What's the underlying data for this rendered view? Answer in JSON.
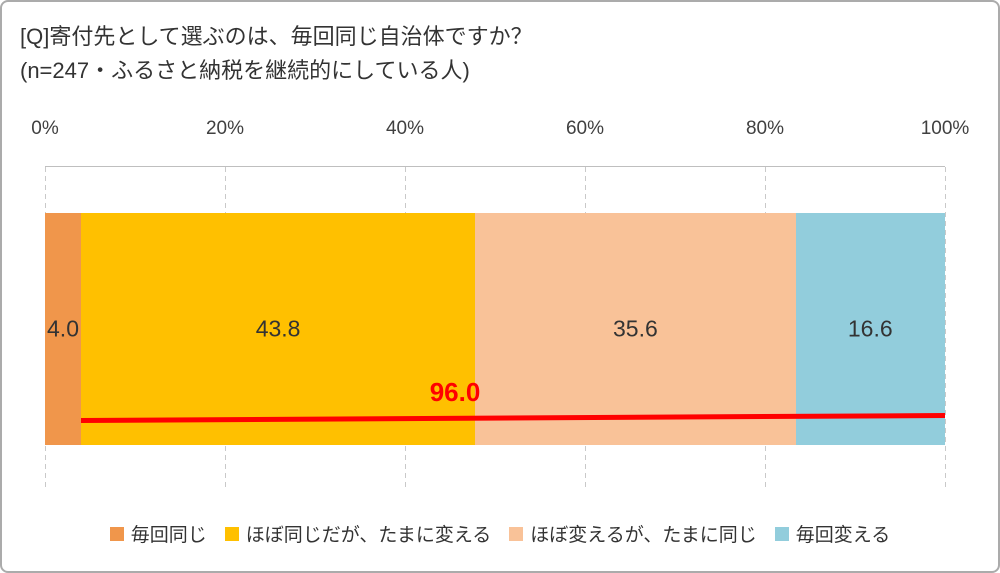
{
  "title": {
    "line1": "[Q]寄付先として選ぶのは、毎回同じ自治体ですか？",
    "line2": "(n=247・ふるさと納税を継続的にしている人)"
  },
  "chart_data": {
    "type": "bar",
    "orientation": "horizontal-stacked",
    "title": "[Q]寄付先として選ぶのは、毎回同じ自治体ですか？",
    "subtitle": "(n=247・ふるさと納税を継続的にしている人)",
    "n": 247,
    "axis": {
      "min": 0,
      "max": 100,
      "ticks": [
        "0%",
        "20%",
        "40%",
        "60%",
        "80%",
        "100%"
      ],
      "gridlines": "dashed-vertical"
    },
    "series": [
      {
        "name": "毎回同じ",
        "value": 4.0,
        "label": "4.0",
        "color": "#F0964B"
      },
      {
        "name": "ほぼ同じだが、たまに変える",
        "value": 43.8,
        "label": "43.8",
        "color": "#FFC000"
      },
      {
        "name": "ほぼ変えるが、たまに同じ",
        "value": 35.6,
        "label": "35.6",
        "color": "#F9C298"
      },
      {
        "name": "毎回変える",
        "value": 16.6,
        "label": "16.6",
        "color": "#92CDDC"
      }
    ],
    "annotation": {
      "label": "96.0",
      "value": 96.0,
      "line_from": 4.0,
      "line_to": 100.0,
      "color": "#FF0000"
    },
    "legend_position": "bottom"
  },
  "colors": {
    "panel_border": "#ababab",
    "axis_line": "#bfbfbf",
    "gridline": "#c9c9c9",
    "text": "#333333",
    "annotation_red": "#FF0000"
  }
}
